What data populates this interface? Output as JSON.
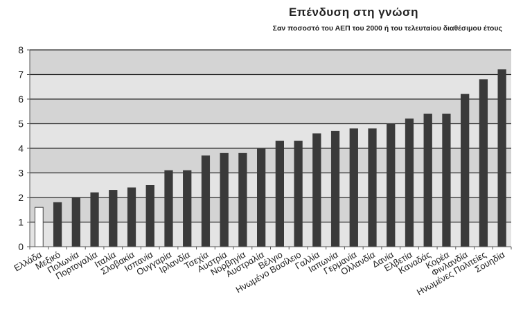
{
  "chart_data": {
    "type": "bar",
    "title": "Επένδυση στη γνώση",
    "subtitle": "Σαν ποσοστό του ΑΕΠ του 2000 ή του τελευταίου διαθέσιμου έτους",
    "xlabel": "",
    "ylabel": "",
    "ylim": [
      0,
      8
    ],
    "yticks": [
      "0",
      "1",
      "2",
      "3",
      "4",
      "5",
      "6",
      "7",
      "8"
    ],
    "grid": true,
    "legend": "none",
    "categories": [
      "Ελλάδα",
      "Μεξικό",
      "Πολωνία",
      "Πορτογαλία",
      "Ιταλία",
      "Σλοβακία",
      "Ισπανία",
      "Ουγγαρία",
      "Ιρλανδία",
      "Τσεχία",
      "Αυστρία",
      "Νορβηγία",
      "Αυστραλία",
      "Βέλγιο",
      "Ηνωμένο Βασίλειο",
      "Γαλλία",
      "Ιαπωνία",
      "Γερμανία",
      "Ολλανδία",
      "Δανία",
      "Ελβετία",
      "Καναδάς",
      "Κορέα",
      "Φινλανδία",
      "Ηνωμένες Πολιτείες",
      "Σουηδία"
    ],
    "values": [
      1.6,
      1.8,
      2.0,
      2.2,
      2.3,
      2.4,
      2.5,
      3.1,
      3.1,
      3.7,
      3.8,
      3.8,
      4.0,
      4.3,
      4.3,
      4.6,
      4.7,
      4.8,
      4.8,
      5.0,
      5.2,
      5.4,
      5.4,
      6.2,
      6.8,
      7.2
    ],
    "highlight_index": 0,
    "colors": {
      "bar": "#3a3a3a",
      "highlight": "#ffffff",
      "plot_band_light": "#e4e4e4",
      "plot_band_dark": "#d4d4d4",
      "gridline": "#2a2a2a",
      "axis": "#555555",
      "text": "#222222"
    }
  }
}
